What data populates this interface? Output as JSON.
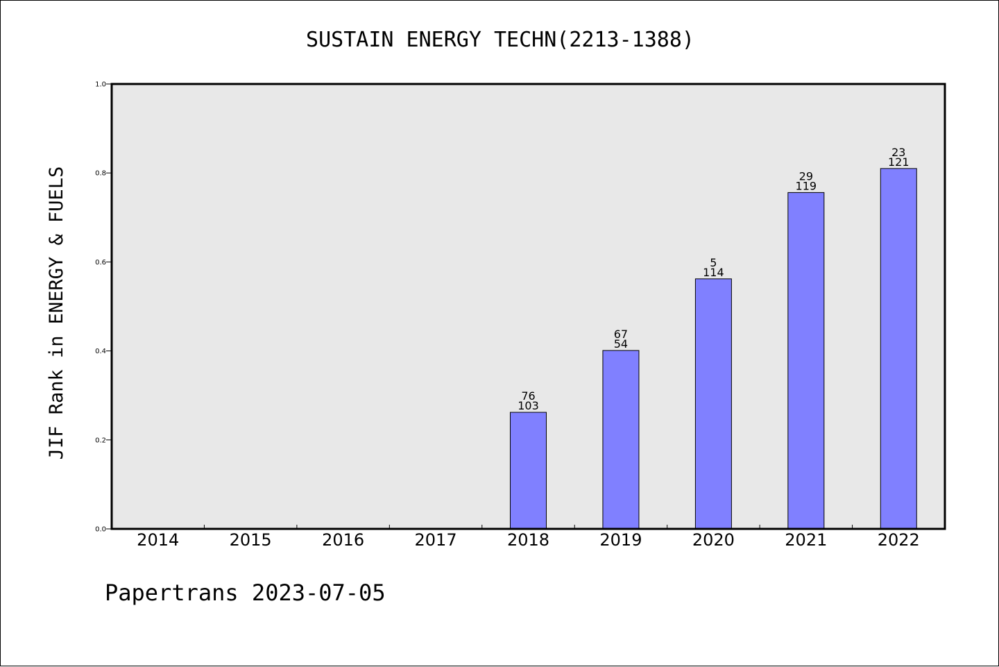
{
  "chart_data": {
    "type": "bar",
    "title": "SUSTAIN ENERGY TECHN(2213-1388)",
    "ylabel": "JIF Rank in ENERGY & FUELS",
    "xlabel": "",
    "categories": [
      "2014",
      "2015",
      "2016",
      "2017",
      "2018",
      "2019",
      "2020",
      "2021",
      "2022"
    ],
    "values": [
      null,
      null,
      null,
      null,
      0.262,
      0.401,
      0.562,
      0.756,
      0.81
    ],
    "label_top": [
      "",
      "",
      "",
      "",
      "76",
      "67",
      "5",
      "29",
      "23"
    ],
    "label_bottom": [
      "",
      "",
      "",
      "",
      "103",
      "54",
      "114",
      "119",
      "121"
    ],
    "ylim": [
      0,
      1.0
    ],
    "yticks": [
      0.0,
      0.2,
      0.4,
      0.6,
      0.8,
      1.0
    ],
    "ytick_labels": [
      "0.0",
      "0.2",
      "0.4",
      "0.6",
      "0.8",
      "1.0"
    ],
    "grid": false,
    "bar_color": "#8080ff",
    "plot_background": "#e8e8e8"
  },
  "footer": {
    "text": "Papertrans 2023-07-05"
  }
}
